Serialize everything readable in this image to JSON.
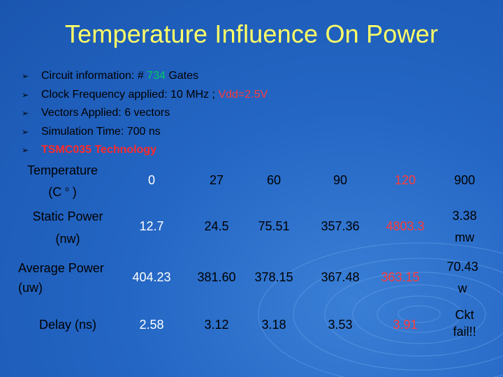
{
  "title": "Temperature Influence On Power",
  "bullets": [
    {
      "pre": "Circuit information: # ",
      "hl": "734",
      "post": " Gates"
    },
    {
      "pre": "Clock Frequency applied: 10 MHz ; ",
      "hl": "Vdd=2.5V",
      "post": ""
    },
    {
      "pre": "Vectors Applied: 6 vectors",
      "hl": "",
      "post": ""
    },
    {
      "pre": "Simulation Time: 700 ns",
      "hl": "",
      "post": ""
    },
    {
      "pre": "",
      "hl": "TSMC035 Technology",
      "post": ""
    }
  ],
  "table": {
    "row_headers": {
      "temp_line1": "Temperature",
      "temp_line2": "(C",
      "temp_sup": "o",
      "temp_close": ")",
      "static_line1": "Static Power",
      "static_line2": "(nw)",
      "avg_line1": "Average Power",
      "avg_line2": "(uw)",
      "delay": "Delay (ns)"
    },
    "temperature": [
      "0",
      "27",
      "60",
      "90",
      "120",
      "900"
    ],
    "static_power": [
      "12.7",
      "24.5",
      "75.51",
      "357.36",
      "4803.3"
    ],
    "static_power_last": [
      "3.38",
      "mw"
    ],
    "average_power": [
      "404.23",
      "381.60",
      "378.15",
      "367.48",
      "363.15"
    ],
    "average_power_last": [
      "70.43",
      "w"
    ],
    "delay": [
      "2.58",
      "3.12",
      "3.18",
      "3.53",
      "3.91"
    ],
    "delay_last": [
      "Ckt",
      "fail!!"
    ]
  }
}
